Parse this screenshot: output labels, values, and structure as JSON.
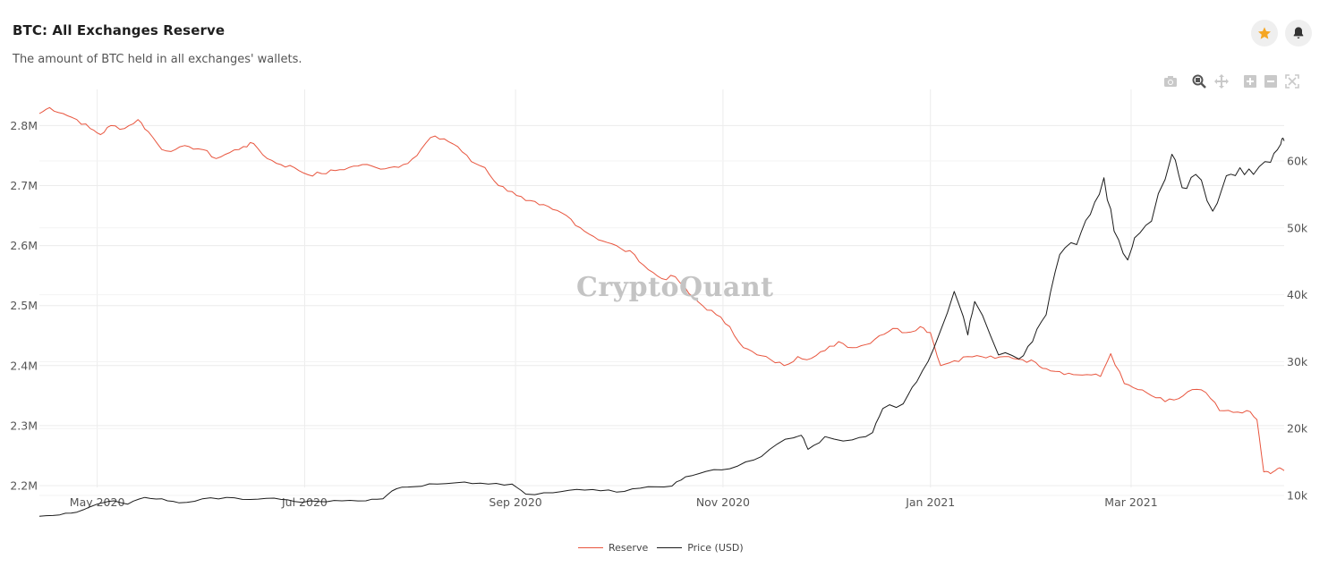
{
  "header": {
    "title": "BTC: All Exchanges Reserve",
    "subtitle": "The amount of BTC held in all exchanges' wallets."
  },
  "toolbar": {
    "icons": [
      "camera-icon",
      "zoom-icon",
      "pan-icon",
      "zoom-in-icon",
      "zoom-out-icon",
      "autoscale-icon"
    ],
    "star_color": "#f5a623"
  },
  "watermark": "CryptoQuant",
  "colors": {
    "reserve": "#e8553e",
    "price": "#1b1b1b",
    "grid": "#ececec"
  },
  "legend": {
    "reserve": "Reserve",
    "price": "Price (USD)"
  },
  "chart_data": {
    "type": "line",
    "title": "BTC: All Exchanges Reserve",
    "x_start": "2020-04-14",
    "x_end": "2021-04-15",
    "x_ticks": [
      {
        "date": "2020-05-01",
        "label": "May 2020"
      },
      {
        "date": "2020-07-01",
        "label": "Jul 2020"
      },
      {
        "date": "2020-09-01",
        "label": "Sep 2020"
      },
      {
        "date": "2020-11-01",
        "label": "Nov 2020"
      },
      {
        "date": "2021-01-01",
        "label": "Jan 2021"
      },
      {
        "date": "2021-03-01",
        "label": "Mar 2021"
      }
    ],
    "y_left": {
      "range": [
        2200000,
        2800000
      ],
      "ticks": [
        {
          "v": 2200000,
          "label": "2.2M"
        },
        {
          "v": 2300000,
          "label": "2.3M"
        },
        {
          "v": 2400000,
          "label": "2.4M"
        },
        {
          "v": 2500000,
          "label": "2.5M"
        },
        {
          "v": 2600000,
          "label": "2.6M"
        },
        {
          "v": 2700000,
          "label": "2.7M"
        },
        {
          "v": 2800000,
          "label": "2.8M"
        }
      ]
    },
    "y_right": {
      "range": [
        0,
        60000
      ],
      "ticks": [
        {
          "v": 10000,
          "label": "10k"
        },
        {
          "v": 20000,
          "label": "20k"
        },
        {
          "v": 30000,
          "label": "30k"
        },
        {
          "v": 40000,
          "label": "40k"
        },
        {
          "v": 50000,
          "label": "50k"
        },
        {
          "v": 60000,
          "label": "60k"
        }
      ]
    },
    "legend_position": "bottom-center",
    "series": [
      {
        "name": "Reserve",
        "axis": "left",
        "points": [
          [
            "2020-04-14",
            2820000
          ],
          [
            "2020-04-17",
            2830000
          ],
          [
            "2020-04-21",
            2820000
          ],
          [
            "2020-04-25",
            2810000
          ],
          [
            "2020-04-29",
            2795000
          ],
          [
            "2020-05-02",
            2785000
          ],
          [
            "2020-05-05",
            2800000
          ],
          [
            "2020-05-09",
            2795000
          ],
          [
            "2020-05-13",
            2810000
          ],
          [
            "2020-05-16",
            2790000
          ],
          [
            "2020-05-20",
            2760000
          ],
          [
            "2020-05-24",
            2760000
          ],
          [
            "2020-05-28",
            2765000
          ],
          [
            "2020-06-01",
            2760000
          ],
          [
            "2020-06-05",
            2745000
          ],
          [
            "2020-06-09",
            2755000
          ],
          [
            "2020-06-13",
            2765000
          ],
          [
            "2020-06-16",
            2770000
          ],
          [
            "2020-06-20",
            2745000
          ],
          [
            "2020-06-24",
            2735000
          ],
          [
            "2020-06-28",
            2730000
          ],
          [
            "2020-07-02",
            2718000
          ],
          [
            "2020-07-06",
            2720000
          ],
          [
            "2020-07-10",
            2725000
          ],
          [
            "2020-07-14",
            2730000
          ],
          [
            "2020-07-18",
            2735000
          ],
          [
            "2020-07-22",
            2730000
          ],
          [
            "2020-07-26",
            2730000
          ],
          [
            "2020-07-30",
            2735000
          ],
          [
            "2020-08-03",
            2750000
          ],
          [
            "2020-08-07",
            2780000
          ],
          [
            "2020-08-11",
            2778000
          ],
          [
            "2020-08-15",
            2765000
          ],
          [
            "2020-08-19",
            2740000
          ],
          [
            "2020-08-23",
            2730000
          ],
          [
            "2020-08-27",
            2700000
          ],
          [
            "2020-08-31",
            2690000
          ],
          [
            "2020-09-04",
            2675000
          ],
          [
            "2020-09-08",
            2668000
          ],
          [
            "2020-09-12",
            2660000
          ],
          [
            "2020-09-16",
            2650000
          ],
          [
            "2020-09-20",
            2630000
          ],
          [
            "2020-09-24",
            2615000
          ],
          [
            "2020-09-28",
            2605000
          ],
          [
            "2020-10-02",
            2595000
          ],
          [
            "2020-10-06",
            2585000
          ],
          [
            "2020-10-10",
            2560000
          ],
          [
            "2020-10-14",
            2545000
          ],
          [
            "2020-10-18",
            2548000
          ],
          [
            "2020-10-22",
            2520000
          ],
          [
            "2020-10-26",
            2500000
          ],
          [
            "2020-10-30",
            2485000
          ],
          [
            "2020-11-03",
            2465000
          ],
          [
            "2020-11-07",
            2430000
          ],
          [
            "2020-11-11",
            2418000
          ],
          [
            "2020-11-15",
            2410000
          ],
          [
            "2020-11-19",
            2400000
          ],
          [
            "2020-11-23",
            2415000
          ],
          [
            "2020-11-27",
            2412000
          ],
          [
            "2020-12-01",
            2425000
          ],
          [
            "2020-12-05",
            2440000
          ],
          [
            "2020-12-09",
            2430000
          ],
          [
            "2020-12-13",
            2435000
          ],
          [
            "2020-12-17",
            2450000
          ],
          [
            "2020-12-21",
            2462000
          ],
          [
            "2020-12-25",
            2455000
          ],
          [
            "2020-12-29",
            2465000
          ],
          [
            "2021-01-01",
            2455000
          ],
          [
            "2021-01-04",
            2400000
          ],
          [
            "2021-01-08",
            2408000
          ],
          [
            "2021-01-12",
            2415000
          ],
          [
            "2021-01-16",
            2415000
          ],
          [
            "2021-01-20",
            2412000
          ],
          [
            "2021-01-24",
            2415000
          ],
          [
            "2021-01-28",
            2410000
          ],
          [
            "2021-02-01",
            2405000
          ],
          [
            "2021-02-04",
            2395000
          ],
          [
            "2021-02-08",
            2390000
          ],
          [
            "2021-02-12",
            2385000
          ],
          [
            "2021-02-16",
            2385000
          ],
          [
            "2021-02-20",
            2382000
          ],
          [
            "2021-02-23",
            2420000
          ],
          [
            "2021-02-27",
            2370000
          ],
          [
            "2021-03-03",
            2360000
          ],
          [
            "2021-03-07",
            2350000
          ],
          [
            "2021-03-11",
            2340000
          ],
          [
            "2021-03-15",
            2345000
          ],
          [
            "2021-03-19",
            2360000
          ],
          [
            "2021-03-23",
            2355000
          ],
          [
            "2021-03-27",
            2325000
          ],
          [
            "2021-03-31",
            2322000
          ],
          [
            "2021-04-04",
            2325000
          ],
          [
            "2021-04-07",
            2310000
          ],
          [
            "2021-04-09",
            2223000
          ],
          [
            "2021-04-11",
            2220000
          ],
          [
            "2021-04-13",
            2228000
          ],
          [
            "2021-04-15",
            2225000
          ]
        ]
      },
      {
        "name": "Price (USD)",
        "axis": "right",
        "points": [
          [
            "2020-04-14",
            6900
          ],
          [
            "2020-04-20",
            7100
          ],
          [
            "2020-04-25",
            7500
          ],
          [
            "2020-05-01",
            8700
          ],
          [
            "2020-05-06",
            9200
          ],
          [
            "2020-05-10",
            8700
          ],
          [
            "2020-05-15",
            9700
          ],
          [
            "2020-05-20",
            9500
          ],
          [
            "2020-05-25",
            8900
          ],
          [
            "2020-06-01",
            9500
          ],
          [
            "2020-06-08",
            9700
          ],
          [
            "2020-06-15",
            9400
          ],
          [
            "2020-06-22",
            9600
          ],
          [
            "2020-06-28",
            9100
          ],
          [
            "2020-07-05",
            9100
          ],
          [
            "2020-07-12",
            9200
          ],
          [
            "2020-07-19",
            9200
          ],
          [
            "2020-07-24",
            9500
          ],
          [
            "2020-07-28",
            11000
          ],
          [
            "2020-08-02",
            11300
          ],
          [
            "2020-08-09",
            11700
          ],
          [
            "2020-08-17",
            12000
          ],
          [
            "2020-08-24",
            11700
          ],
          [
            "2020-08-31",
            11700
          ],
          [
            "2020-09-04",
            10200
          ],
          [
            "2020-09-12",
            10400
          ],
          [
            "2020-09-19",
            10900
          ],
          [
            "2020-09-26",
            10700
          ],
          [
            "2020-10-03",
            10600
          ],
          [
            "2020-10-10",
            11300
          ],
          [
            "2020-10-17",
            11400
          ],
          [
            "2020-10-21",
            12800
          ],
          [
            "2020-10-27",
            13600
          ],
          [
            "2020-11-03",
            14000
          ],
          [
            "2020-11-10",
            15300
          ],
          [
            "2020-11-17",
            17700
          ],
          [
            "2020-11-24",
            19000
          ],
          [
            "2020-11-26",
            16900
          ],
          [
            "2020-12-01",
            18800
          ],
          [
            "2020-12-09",
            18300
          ],
          [
            "2020-12-15",
            19400
          ],
          [
            "2020-12-18",
            23000
          ],
          [
            "2020-12-24",
            23700
          ],
          [
            "2020-12-28",
            27000
          ],
          [
            "2021-01-02",
            32000
          ],
          [
            "2021-01-08",
            40500
          ],
          [
            "2021-01-12",
            34000
          ],
          [
            "2021-01-14",
            39000
          ],
          [
            "2021-01-21",
            31000
          ],
          [
            "2021-01-27",
            30400
          ],
          [
            "2021-01-31",
            33000
          ],
          [
            "2021-02-04",
            37000
          ],
          [
            "2021-02-08",
            46000
          ],
          [
            "2021-02-13",
            47500
          ],
          [
            "2021-02-17",
            52000
          ],
          [
            "2021-02-21",
            57500
          ],
          [
            "2021-02-24",
            49500
          ],
          [
            "2021-02-28",
            45200
          ],
          [
            "2021-03-02",
            48500
          ],
          [
            "2021-03-07",
            51000
          ],
          [
            "2021-03-13",
            61000
          ],
          [
            "2021-03-16",
            56000
          ],
          [
            "2021-03-20",
            58000
          ],
          [
            "2021-03-25",
            52500
          ],
          [
            "2021-03-29",
            57800
          ],
          [
            "2021-04-02",
            59000
          ],
          [
            "2021-04-06",
            58000
          ],
          [
            "2021-04-11",
            59800
          ],
          [
            "2021-04-14",
            62500
          ],
          [
            "2021-04-15",
            63000
          ]
        ]
      }
    ]
  }
}
